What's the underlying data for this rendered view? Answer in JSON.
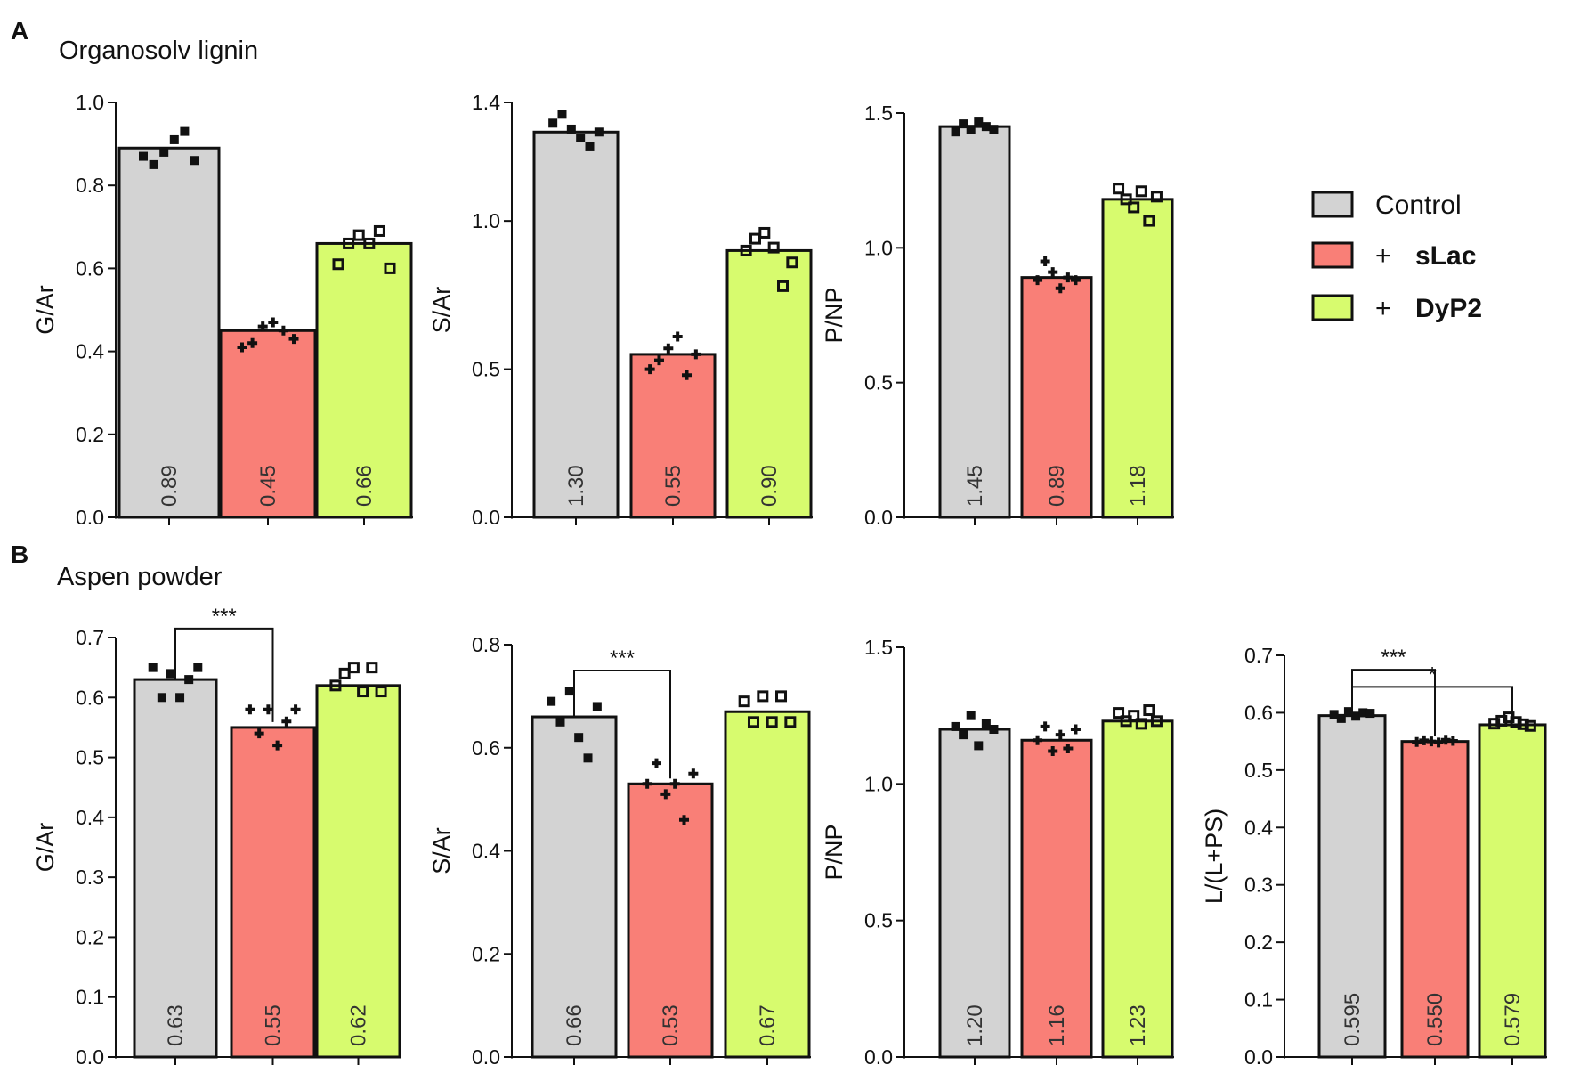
{
  "panels": {
    "A": {
      "letter": "A",
      "title": "Organosolv lignin"
    },
    "B": {
      "letter": "B",
      "title": "Aspen powder"
    }
  },
  "legend": [
    {
      "name": "Control",
      "prefix": "",
      "color": "#d3d3d3"
    },
    {
      "name": "sLac",
      "prefix": "+",
      "color": "#f97f77"
    },
    {
      "name": "DyP2",
      "prefix": "+",
      "color": "#d7fb6e"
    }
  ],
  "colors": {
    "Control": "#d3d3d3",
    "sLac": "#f97f77",
    "DyP2": "#d7fb6e"
  },
  "chart_data": [
    {
      "id": "A-GAr",
      "panel": "A",
      "type": "bar",
      "ylabel": "G/Ar",
      "categories": [
        "Control",
        "+ sLac",
        "+ DyP2"
      ],
      "ylim": [
        0,
        1.0
      ],
      "yticks": [
        "0.0",
        "0.2",
        "0.4",
        "0.6",
        "0.8",
        "1.0"
      ],
      "values": [
        0.89,
        0.45,
        0.66
      ],
      "value_labels": [
        "0.89",
        "0.45",
        "0.66"
      ],
      "points": [
        [
          0.87,
          0.85,
          0.88,
          0.91,
          0.93,
          0.86
        ],
        [
          0.41,
          0.42,
          0.46,
          0.47,
          0.45,
          0.43
        ],
        [
          0.61,
          0.66,
          0.68,
          0.66,
          0.69,
          0.6
        ]
      ],
      "significance": []
    },
    {
      "id": "A-SAr",
      "panel": "A",
      "type": "bar",
      "ylabel": "S/Ar",
      "categories": [
        "Control",
        "+ sLac",
        "+ DyP2"
      ],
      "ylim": [
        0,
        1.4
      ],
      "yticks": [
        "0.0",
        "0.5",
        "1.0",
        "1.4"
      ],
      "values": [
        1.3,
        0.55,
        0.9
      ],
      "value_labels": [
        "1.30",
        "0.55",
        "0.90"
      ],
      "points": [
        [
          1.33,
          1.36,
          1.31,
          1.28,
          1.25,
          1.3
        ],
        [
          0.5,
          0.53,
          0.57,
          0.61,
          0.48,
          0.55
        ],
        [
          0.9,
          0.94,
          0.96,
          0.91,
          0.78,
          0.86
        ]
      ],
      "significance": []
    },
    {
      "id": "A-PNP",
      "panel": "A",
      "type": "bar",
      "ylabel": "P/NP",
      "categories": [
        "Control",
        "+ sLac",
        "+ DyP2"
      ],
      "ylim": [
        0,
        1.5
      ],
      "yticks": [
        "0.0",
        "0.5",
        "1.0",
        "1.5"
      ],
      "values": [
        1.45,
        0.89,
        1.18
      ],
      "value_labels": [
        "1.45",
        "0.89",
        "1.18"
      ],
      "points": [
        [
          1.43,
          1.46,
          1.44,
          1.47,
          1.45,
          1.44
        ],
        [
          0.88,
          0.95,
          0.91,
          0.85,
          0.89,
          0.88
        ],
        [
          1.22,
          1.18,
          1.15,
          1.21,
          1.1,
          1.19
        ]
      ],
      "significance": []
    },
    {
      "id": "B-GAr",
      "panel": "B",
      "type": "bar",
      "ylabel": "G/Ar",
      "categories": [
        "Control",
        "+ sLac",
        "+ DyP2"
      ],
      "ylim": [
        0,
        0.7
      ],
      "yticks": [
        "0.0",
        "0.1",
        "0.2",
        "0.3",
        "0.4",
        "0.5",
        "0.6",
        "0.7"
      ],
      "values": [
        0.63,
        0.55,
        0.62
      ],
      "value_labels": [
        "0.63",
        "0.55",
        "0.62"
      ],
      "points": [
        [
          0.65,
          0.6,
          0.64,
          0.6,
          0.63,
          0.65
        ],
        [
          0.58,
          0.54,
          0.58,
          0.52,
          0.56,
          0.58
        ],
        [
          0.62,
          0.64,
          0.65,
          0.61,
          0.65,
          0.61
        ]
      ],
      "significance": [
        {
          "from": 0,
          "to": 1,
          "label": "***",
          "y": 0.715
        }
      ]
    },
    {
      "id": "B-SAr",
      "panel": "B",
      "type": "bar",
      "ylabel": "S/Ar",
      "categories": [
        "Control",
        "+ sLac",
        "+ DyP2"
      ],
      "ylim": [
        0,
        0.8
      ],
      "yticks": [
        "0.0",
        "0.2",
        "0.4",
        "0.6",
        "0.8"
      ],
      "values": [
        0.66,
        0.53,
        0.67
      ],
      "value_labels": [
        "0.66",
        "0.53",
        "0.67"
      ],
      "points": [
        [
          0.69,
          0.65,
          0.71,
          0.62,
          0.58,
          0.68
        ],
        [
          0.53,
          0.57,
          0.51,
          0.53,
          0.46,
          0.55
        ],
        [
          0.69,
          0.65,
          0.7,
          0.65,
          0.7,
          0.65
        ]
      ],
      "significance": [
        {
          "from": 0,
          "to": 1,
          "label": "***",
          "y": 0.75
        }
      ]
    },
    {
      "id": "B-PNP",
      "panel": "B",
      "type": "bar",
      "ylabel": "P/NP",
      "categories": [
        "Control",
        "+ sLac",
        "+ DyP2"
      ],
      "ylim": [
        0,
        1.5
      ],
      "yticks": [
        "0.0",
        "0.5",
        "1.0",
        "1.5"
      ],
      "values": [
        1.2,
        1.16,
        1.23
      ],
      "value_labels": [
        "1.20",
        "1.16",
        "1.23"
      ],
      "points": [
        [
          1.21,
          1.18,
          1.25,
          1.14,
          1.22,
          1.2
        ],
        [
          1.16,
          1.21,
          1.12,
          1.18,
          1.13,
          1.2
        ],
        [
          1.26,
          1.23,
          1.25,
          1.22,
          1.27,
          1.23
        ]
      ],
      "significance": []
    },
    {
      "id": "B-L",
      "panel": "B",
      "type": "bar",
      "ylabel": "L/(L+PS)",
      "categories": [
        "Control",
        "+ sLac",
        "+ DyP2"
      ],
      "ylim": [
        0,
        0.7
      ],
      "yticks": [
        "0.0",
        "0.1",
        "0.2",
        "0.3",
        "0.4",
        "0.5",
        "0.6",
        "0.7"
      ],
      "values": [
        0.595,
        0.55,
        0.579
      ],
      "value_labels": [
        "0.595",
        "0.550",
        "0.579"
      ],
      "points": [
        [
          0.597,
          0.59,
          0.602,
          0.594,
          0.6,
          0.599
        ],
        [
          0.549,
          0.552,
          0.55,
          0.548,
          0.553,
          0.551
        ],
        [
          0.581,
          0.586,
          0.592,
          0.584,
          0.58,
          0.577
        ]
      ],
      "significance": [
        {
          "from": 0,
          "to": 1,
          "label": "***",
          "y": 0.675
        },
        {
          "from": 0,
          "to": 2,
          "label": "*",
          "y": 0.645
        }
      ]
    }
  ]
}
